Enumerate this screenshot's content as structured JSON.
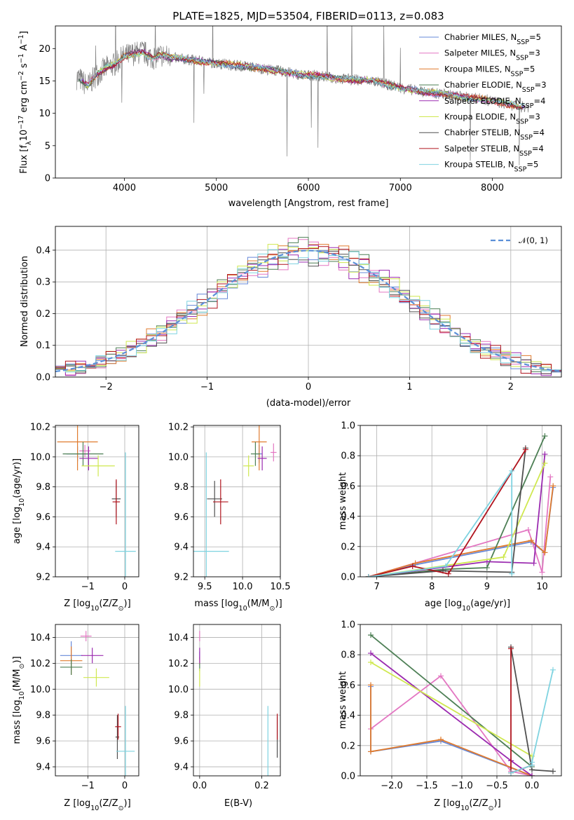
{
  "chart_data": [
    {
      "type": "line",
      "title": "PLATE=1825, MJD=53504, FIBERID=0113, z=0.083",
      "xlabel": "wavelength [Angstrom, rest frame]",
      "ylabel_parts": [
        "Flux [f",
        "λ",
        "10",
        "−17",
        " erg cm",
        "−2",
        " s",
        "−1",
        " A",
        "−1",
        "]"
      ],
      "xlim": [
        3250,
        8750
      ],
      "ylim": [
        0,
        23.5
      ],
      "xticks": [
        4000,
        5000,
        6000,
        7000,
        8000
      ],
      "yticks": [
        0,
        5,
        10,
        15,
        20
      ],
      "grid": false,
      "legend_position": "top-right",
      "series": [
        {
          "label": "Chabrier MILES, N",
          "sub": "SSP",
          "tail": "=5",
          "color": "#6688d8"
        },
        {
          "label": "Salpeter MILES, N",
          "sub": "SSP",
          "tail": "=3",
          "color": "#e377c2"
        },
        {
          "label": "Kroupa MILES, N",
          "sub": "SSP",
          "tail": "=5",
          "color": "#e07b2e"
        },
        {
          "label": "Chabrier ELODIE, N",
          "sub": "SSP",
          "tail": "=3",
          "color": "#4d7f55"
        },
        {
          "label": "Salpeter ELODIE, N",
          "sub": "SSP",
          "tail": "=4",
          "color": "#9b2bb0"
        },
        {
          "label": "Kroupa ELODIE, N",
          "sub": "SSP",
          "tail": "=3",
          "color": "#cfe84f"
        },
        {
          "label": "Chabrier STELIB, N",
          "sub": "SSP",
          "tail": "=4",
          "color": "#505050"
        },
        {
          "label": "Salpeter STELIB, N",
          "sub": "SSP",
          "tail": "=4",
          "color": "#b0141e"
        },
        {
          "label": "Kroupa STELIB, N",
          "sub": "SSP",
          "tail": "=5",
          "color": "#7fd3e0"
        }
      ],
      "continuum": {
        "x": [
          3500,
          3600,
          3700,
          3800,
          3900,
          4000,
          4100,
          4200,
          4300,
          4400,
          4500,
          4700,
          4900,
          5100,
          5300,
          5500,
          5700,
          5900,
          6100,
          6300,
          6500,
          6700,
          6900,
          7100,
          7300,
          7500,
          7700,
          7900,
          8100,
          8300
        ],
        "y": [
          15.5,
          14.2,
          16.0,
          17.0,
          17.6,
          18.8,
          19.2,
          19.5,
          18.6,
          19.0,
          18.6,
          18.3,
          17.9,
          17.6,
          17.3,
          16.9,
          16.5,
          16.0,
          15.8,
          15.4,
          15.2,
          15.0,
          14.3,
          13.7,
          13.2,
          12.9,
          12.5,
          12.2,
          11.6,
          11.0
        ]
      },
      "observed_color": "#808080"
    },
    {
      "type": "line",
      "xlabel": "(data-model)/error",
      "ylabel": "Normed distribution",
      "xlim": [
        -2.5,
        2.5
      ],
      "ylim": [
        0,
        0.475
      ],
      "xticks": [
        -2,
        -1,
        0,
        1,
        2
      ],
      "yticks": [
        0.0,
        0.1,
        0.2,
        0.3,
        0.4
      ],
      "grid": true,
      "legend_position": "top-right",
      "normal": {
        "label": "𝒩(0, 1)",
        "color": "#5b8fd8"
      }
    },
    {
      "type": "scatter",
      "xlabel_parts": [
        "Z [log",
        "10",
        "(Z/Z",
        "⊙",
        ")]"
      ],
      "ylabel_parts": [
        "age  [log",
        "10",
        "(age/yr)]"
      ],
      "xlim": [
        -1.88,
        0.38
      ],
      "ylim": [
        9.2,
        10.21
      ],
      "xticks": [
        -1,
        0
      ],
      "yticks": [
        9.2,
        9.4,
        9.6,
        9.8,
        10.0,
        10.2
      ],
      "grid": true,
      "points": [
        {
          "x": -1.28,
          "y": 10.02,
          "xerr": 0.3,
          "yerr": 0.05,
          "color": "#6688d8"
        },
        {
          "x": -1.08,
          "y": 10.04,
          "xerr": 0.15,
          "yerr": 0.04,
          "color": "#e377c2"
        },
        {
          "x": -1.28,
          "y": 10.1,
          "xerr": 0.55,
          "yerr": 0.19,
          "color": "#e07b2e"
        },
        {
          "x": -1.13,
          "y": 10.02,
          "xerr": 0.55,
          "yerr": 0.08,
          "color": "#4d7f55"
        },
        {
          "x": -0.98,
          "y": 9.99,
          "xerr": 0.25,
          "yerr": 0.08,
          "color": "#9b2bb0"
        },
        {
          "x": -0.72,
          "y": 9.94,
          "xerr": 0.45,
          "yerr": 0.07,
          "color": "#cfe84f"
        },
        {
          "x": -0.23,
          "y": 9.72,
          "xerr": 0.12,
          "yerr": 0.12,
          "color": "#505050"
        },
        {
          "x": -0.23,
          "y": 9.7,
          "xerr": 0.1,
          "yerr": 0.15,
          "color": "#b0141e"
        },
        {
          "x": 0.02,
          "y": 9.37,
          "xerr": 0.28,
          "yerr": 0.66,
          "color": "#7fd3e0"
        }
      ]
    },
    {
      "type": "scatter",
      "xlabel_parts": [
        "mass [log",
        "10",
        "(M/M",
        "⊙",
        ")]"
      ],
      "xlim": [
        9.35,
        10.5
      ],
      "ylim": [
        9.2,
        10.21
      ],
      "xticks": [
        9.5,
        10.0,
        10.5
      ],
      "yticks": [
        9.2,
        9.4,
        9.6,
        9.8,
        10.0,
        10.2
      ],
      "grid": true,
      "points": [
        {
          "x": 10.22,
          "y": 10.02,
          "xerr": 0.04,
          "yerr": 0.06,
          "color": "#6688d8"
        },
        {
          "x": 10.41,
          "y": 10.03,
          "xerr": 0.04,
          "yerr": 0.06,
          "color": "#e377c2"
        },
        {
          "x": 10.22,
          "y": 10.1,
          "xerr": 0.1,
          "yerr": 0.19,
          "color": "#e07b2e"
        },
        {
          "x": 10.17,
          "y": 10.02,
          "xerr": 0.06,
          "yerr": 0.08,
          "color": "#4d7f55"
        },
        {
          "x": 10.26,
          "y": 9.99,
          "xerr": 0.06,
          "yerr": 0.08,
          "color": "#9b2bb0"
        },
        {
          "x": 10.08,
          "y": 9.94,
          "xerr": 0.07,
          "yerr": 0.07,
          "color": "#cfe84f"
        },
        {
          "x": 9.63,
          "y": 9.72,
          "xerr": 0.1,
          "yerr": 0.12,
          "color": "#505050"
        },
        {
          "x": 9.71,
          "y": 9.7,
          "xerr": 0.1,
          "yerr": 0.15,
          "color": "#b0141e"
        },
        {
          "x": 9.52,
          "y": 9.37,
          "xerr": 0.3,
          "yerr": 0.66,
          "color": "#7fd3e0"
        }
      ]
    },
    {
      "type": "line",
      "xlabel_parts": [
        "age  [log",
        "10",
        "(age/yr)]"
      ],
      "ylabel": "mass weight",
      "xlim": [
        6.7,
        10.35
      ],
      "ylim": [
        0,
        1.0
      ],
      "xticks": [
        7,
        8,
        9,
        10
      ],
      "yticks": [
        0.0,
        0.2,
        0.4,
        0.6,
        0.8,
        1.0
      ],
      "grid": true,
      "series": [
        {
          "color": "#6688d8",
          "x": [
            6.85,
            7.7,
            9.8,
            10.05,
            10.2
          ],
          "y": [
            0.0,
            0.08,
            0.23,
            0.16,
            0.59
          ]
        },
        {
          "color": "#e377c2",
          "x": [
            6.85,
            9.75,
            10.0,
            10.15
          ],
          "y": [
            0.0,
            0.31,
            0.03,
            0.66
          ]
        },
        {
          "color": "#e07b2e",
          "x": [
            6.85,
            7.7,
            9.8,
            10.05,
            10.2
          ],
          "y": [
            0.0,
            0.09,
            0.24,
            0.16,
            0.6
          ]
        },
        {
          "color": "#4d7f55",
          "x": [
            6.85,
            8.25,
            9.0,
            10.05
          ],
          "y": [
            0.0,
            0.05,
            0.06,
            0.93
          ]
        },
        {
          "color": "#9b2bb0",
          "x": [
            6.85,
            9.0,
            9.85,
            10.05
          ],
          "y": [
            0.0,
            0.1,
            0.09,
            0.81
          ]
        },
        {
          "color": "#cfe84f",
          "x": [
            6.85,
            9.3,
            10.05
          ],
          "y": [
            0.0,
            0.13,
            0.75
          ]
        },
        {
          "color": "#505050",
          "x": [
            6.85,
            8.2,
            9.45,
            9.7
          ],
          "y": [
            0.0,
            0.04,
            0.03,
            0.85
          ]
        },
        {
          "color": "#b0141e",
          "x": [
            6.85,
            7.65,
            8.3,
            9.7
          ],
          "y": [
            0.0,
            0.07,
            0.02,
            0.84
          ]
        },
        {
          "color": "#7fd3e0",
          "x": [
            6.85,
            8.25,
            9.45,
            9.45
          ],
          "y": [
            0.0,
            0.07,
            0.7,
            0.02
          ]
        }
      ]
    },
    {
      "type": "scatter",
      "xlabel_parts": [
        "Z [log",
        "10",
        "(Z/Z",
        "⊙",
        ")]"
      ],
      "ylabel_parts": [
        "mass [log",
        "10",
        "(M/M",
        "⊙",
        ")]"
      ],
      "xlim": [
        -1.88,
        0.38
      ],
      "ylim": [
        9.33,
        10.5
      ],
      "xticks": [
        -1,
        0
      ],
      "yticks": [
        9.4,
        9.6,
        9.8,
        10.0,
        10.2,
        10.4
      ],
      "grid": true,
      "points": [
        {
          "x": -1.45,
          "y": 10.26,
          "xerr": 0.3,
          "yerr": 0.11,
          "color": "#6688d8"
        },
        {
          "x": -1.05,
          "y": 10.41,
          "xerr": 0.15,
          "yerr": 0.04,
          "color": "#e377c2"
        },
        {
          "x": -1.45,
          "y": 10.22,
          "xerr": 0.3,
          "yerr": 0.11,
          "color": "#e07b2e"
        },
        {
          "x": -1.45,
          "y": 10.17,
          "xerr": 0.3,
          "yerr": 0.06,
          "color": "#4d7f55"
        },
        {
          "x": -0.88,
          "y": 10.26,
          "xerr": 0.3,
          "yerr": 0.06,
          "color": "#9b2bb0"
        },
        {
          "x": -0.77,
          "y": 10.09,
          "xerr": 0.35,
          "yerr": 0.07,
          "color": "#cfe84f"
        },
        {
          "x": -0.2,
          "y": 9.63,
          "xerr": 0.05,
          "yerr": 0.17,
          "color": "#505050"
        },
        {
          "x": -0.18,
          "y": 9.71,
          "xerr": 0.08,
          "yerr": 0.1,
          "color": "#b0141e"
        },
        {
          "x": 0.02,
          "y": 9.52,
          "xerr": 0.25,
          "yerr": 0.35,
          "color": "#7fd3e0"
        }
      ]
    },
    {
      "type": "scatter",
      "xlabel": "E(B-V)",
      "xlim": [
        -0.02,
        0.26
      ],
      "ylim": [
        9.33,
        10.5
      ],
      "xticks": [
        0.0,
        0.2
      ],
      "yticks": [
        9.4,
        9.6,
        9.8,
        10.0,
        10.2,
        10.4
      ],
      "grid": true,
      "points": [
        {
          "x": 0.0,
          "y": 10.26,
          "xerr": 0.0,
          "yerr": 0.03,
          "color": "#6688d8"
        },
        {
          "x": 0.0,
          "y": 10.41,
          "xerr": 0.0,
          "yerr": 0.04,
          "color": "#e377c2"
        },
        {
          "x": 0.0,
          "y": 10.22,
          "xerr": 0.0,
          "yerr": 0.03,
          "color": "#e07b2e"
        },
        {
          "x": 0.0,
          "y": 10.17,
          "xerr": 0.0,
          "yerr": 0.03,
          "color": "#4d7f55"
        },
        {
          "x": 0.0,
          "y": 10.26,
          "xerr": 0.0,
          "yerr": 0.06,
          "color": "#9b2bb0"
        },
        {
          "x": 0.0,
          "y": 10.09,
          "xerr": 0.0,
          "yerr": 0.07,
          "color": "#cfe84f"
        },
        {
          "x": 0.25,
          "y": 9.63,
          "xerr": 0.0,
          "yerr": 0.16,
          "color": "#505050"
        },
        {
          "x": 0.25,
          "y": 9.71,
          "xerr": 0.0,
          "yerr": 0.1,
          "color": "#b0141e"
        },
        {
          "x": 0.22,
          "y": 9.52,
          "xerr": 0.0,
          "yerr": 0.35,
          "color": "#7fd3e0"
        }
      ]
    },
    {
      "type": "line",
      "xlabel_parts": [
        "Z [log",
        "10",
        "(Z/Z",
        "⊙",
        ")]"
      ],
      "ylabel": "mass weight",
      "xlim": [
        -2.45,
        0.42
      ],
      "ylim": [
        0,
        1.0
      ],
      "xticks": [
        -2.0,
        -1.5,
        -1.0,
        -0.5,
        0.0
      ],
      "yticks": [
        0.0,
        0.2,
        0.4,
        0.6,
        0.8,
        1.0
      ],
      "grid": true,
      "series": [
        {
          "color": "#6688d8",
          "x": [
            -2.3,
            -2.3,
            -1.3,
            0.0
          ],
          "y": [
            0.59,
            0.16,
            0.23,
            0.0
          ]
        },
        {
          "color": "#e377c2",
          "x": [
            -2.3,
            -1.3,
            -0.3,
            0.0
          ],
          "y": [
            0.31,
            0.66,
            0.03,
            0.0
          ]
        },
        {
          "color": "#e07b2e",
          "x": [
            -2.3,
            -2.3,
            -1.3,
            0.0
          ],
          "y": [
            0.6,
            0.16,
            0.24,
            0.0
          ]
        },
        {
          "color": "#4d7f55",
          "x": [
            -2.3,
            0.0
          ],
          "y": [
            0.93,
            0.06
          ]
        },
        {
          "color": "#9b2bb0",
          "x": [
            -2.3,
            -0.3,
            0.0
          ],
          "y": [
            0.81,
            0.1,
            0.0
          ]
        },
        {
          "color": "#cfe84f",
          "x": [
            -2.3,
            0.0
          ],
          "y": [
            0.75,
            0.13
          ]
        },
        {
          "color": "#505050",
          "x": [
            -0.3,
            0.0,
            0.3
          ],
          "y": [
            0.85,
            0.04,
            0.03
          ]
        },
        {
          "color": "#b0141e",
          "x": [
            -0.3,
            -0.3,
            0.0
          ],
          "y": [
            0.84,
            0.02,
            0.07
          ]
        },
        {
          "color": "#7fd3e0",
          "x": [
            -0.3,
            0.0,
            0.0,
            0.3
          ],
          "y": [
            0.02,
            0.07,
            0.09,
            0.7
          ]
        }
      ]
    }
  ]
}
